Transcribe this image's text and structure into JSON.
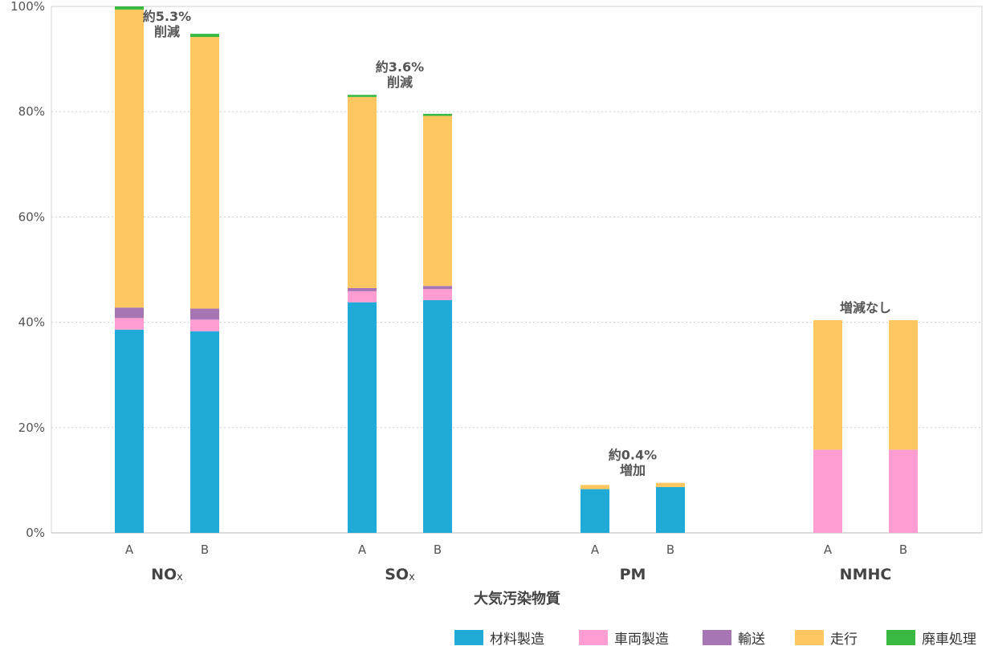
{
  "chart_data": {
    "type": "bar",
    "stacked": true,
    "xlabel": "大気汚染物質",
    "ylabel": "",
    "ylim": [
      0,
      100
    ],
    "y_ticks": [
      "0%",
      "20%",
      "40%",
      "60%",
      "80%",
      "100%"
    ],
    "grid": true,
    "legend_position": "bottom-right",
    "groups": [
      {
        "label": "NO",
        "subscript": "x",
        "bars": [
          "A",
          "B"
        ]
      },
      {
        "label": "SO",
        "subscript": "x",
        "bars": [
          "A",
          "B"
        ]
      },
      {
        "label": "PM",
        "subscript": "",
        "bars": [
          "A",
          "B"
        ]
      },
      {
        "label": "NMHC",
        "subscript": "",
        "bars": [
          "A",
          "B"
        ]
      }
    ],
    "categories": [
      "NOx A",
      "NOx B",
      "SOx A",
      "SOx B",
      "PM A",
      "PM B",
      "NMHC A",
      "NMHC B"
    ],
    "series": [
      {
        "name": "材料製造",
        "color": "#1faad8",
        "values": [
          38.6,
          38.3,
          43.8,
          44.2,
          8.3,
          8.7,
          0,
          0
        ]
      },
      {
        "name": "車両製造",
        "color": "#fd9dd2",
        "values": [
          2.2,
          2.2,
          2.1,
          2.1,
          0,
          0,
          15.8,
          15.8
        ]
      },
      {
        "name": "輸送",
        "color": "#a675b3",
        "values": [
          2.0,
          2.1,
          0.6,
          0.6,
          0,
          0,
          0,
          0
        ]
      },
      {
        "name": "走行",
        "color": "#fec761",
        "values": [
          56.6,
          51.6,
          36.3,
          32.3,
          0.8,
          0.8,
          24.6,
          24.6
        ]
      },
      {
        "name": "廃車処理",
        "color": "#39b842",
        "values": [
          0.6,
          0.6,
          0.4,
          0.4,
          0,
          0,
          0,
          0
        ]
      }
    ],
    "annotations": [
      {
        "group": 0,
        "lines": [
          "約5.3%",
          "削減"
        ]
      },
      {
        "group": 1,
        "lines": [
          "約3.6%",
          "削減"
        ]
      },
      {
        "group": 2,
        "lines": [
          "約0.4%",
          "増加"
        ]
      },
      {
        "group": 3,
        "lines": [
          "増減なし"
        ]
      }
    ]
  }
}
